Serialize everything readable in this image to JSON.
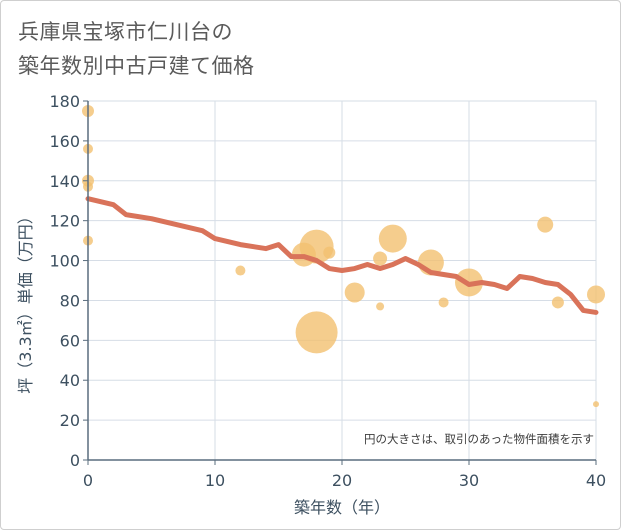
{
  "title_lines": [
    "兵庫県宝塚市仁川台の",
    "築年数別中古戸建て価格"
  ],
  "chart_data": {
    "type": "scatter",
    "title": "兵庫県宝塚市仁川台の築年数別中古戸建て価格",
    "xlabel": "築年数（年）",
    "ylabel": "坪（3.3㎡）単価（万円）",
    "xlim": [
      0,
      40
    ],
    "ylim": [
      0,
      180
    ],
    "xticks": [
      "0",
      "10",
      "20",
      "30",
      "40"
    ],
    "yticks": [
      "0",
      "20",
      "40",
      "60",
      "80",
      "100",
      "120",
      "140",
      "160",
      "180"
    ],
    "grid": true,
    "annotation": "円の大きさは、取引のあった物件面積を示す",
    "colors": {
      "bubble": "#f2c070",
      "line": "#d9735a",
      "grid": "#d6dde6",
      "axis": "#5a6d7e"
    },
    "bubbles": [
      {
        "x": 0,
        "y": 175,
        "size": 6
      },
      {
        "x": 0,
        "y": 156,
        "size": 5
      },
      {
        "x": 0,
        "y": 140,
        "size": 6
      },
      {
        "x": 0,
        "y": 137,
        "size": 5
      },
      {
        "x": 0,
        "y": 110,
        "size": 5
      },
      {
        "x": 12,
        "y": 95,
        "size": 5
      },
      {
        "x": 17,
        "y": 103,
        "size": 12
      },
      {
        "x": 18,
        "y": 107,
        "size": 17
      },
      {
        "x": 18,
        "y": 64,
        "size": 21
      },
      {
        "x": 19,
        "y": 104,
        "size": 6
      },
      {
        "x": 21,
        "y": 84,
        "size": 10
      },
      {
        "x": 23,
        "y": 101,
        "size": 7
      },
      {
        "x": 23,
        "y": 77,
        "size": 4
      },
      {
        "x": 24,
        "y": 111,
        "size": 14
      },
      {
        "x": 27,
        "y": 99,
        "size": 13
      },
      {
        "x": 28,
        "y": 79,
        "size": 5
      },
      {
        "x": 30,
        "y": 89,
        "size": 14
      },
      {
        "x": 36,
        "y": 118,
        "size": 8
      },
      {
        "x": 37,
        "y": 79,
        "size": 6
      },
      {
        "x": 40,
        "y": 83,
        "size": 9
      },
      {
        "x": 40,
        "y": 28,
        "size": 3
      }
    ],
    "trend": {
      "x": [
        0,
        2,
        3,
        5,
        7,
        9,
        10,
        12,
        14,
        15,
        16,
        17,
        18,
        19,
        20,
        21,
        22,
        23,
        24,
        25,
        26,
        27,
        28,
        29,
        30,
        31,
        32,
        33,
        34,
        35,
        36,
        37,
        38,
        39,
        40
      ],
      "y": [
        131,
        128,
        123,
        121,
        118,
        115,
        111,
        108,
        106,
        108,
        102,
        102,
        100,
        96,
        95,
        96,
        98,
        96,
        98,
        101,
        98,
        94,
        93,
        92,
        88,
        89,
        88,
        86,
        92,
        91,
        89,
        88,
        83,
        75,
        74
      ]
    }
  }
}
